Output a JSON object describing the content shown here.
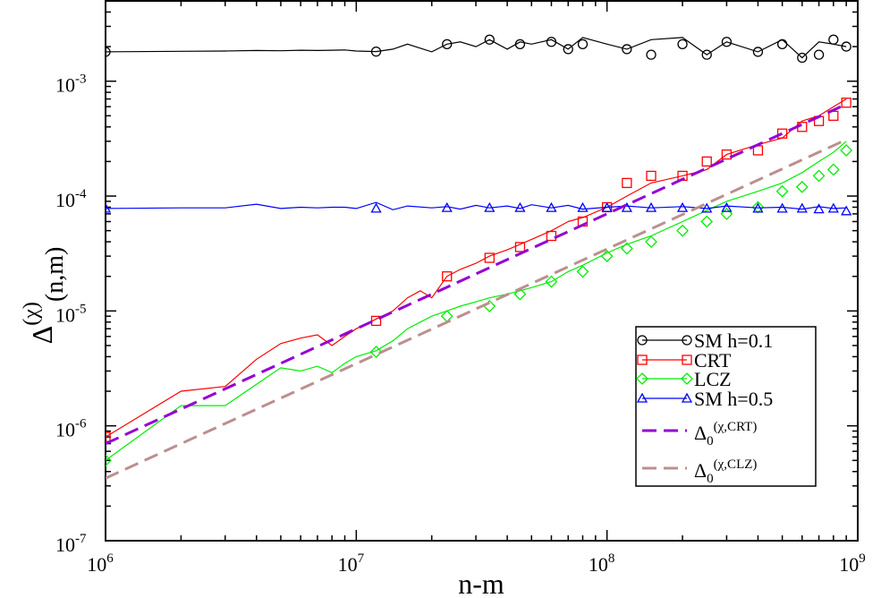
{
  "chart_data": {
    "type": "line",
    "xscale": "log",
    "yscale": "log",
    "xlim": [
      1000000,
      1000000000
    ],
    "ylim": [
      1e-07,
      0.005
    ],
    "xlabel": "n-m",
    "ylabel": {
      "main": "Δ",
      "sup": "(χ)",
      "sub": "(n,m)"
    },
    "x_ticks": [
      {
        "base": "10",
        "exp": "6",
        "value": 1000000
      },
      {
        "base": "10",
        "exp": "7",
        "value": 10000000
      },
      {
        "base": "10",
        "exp": "8",
        "value": 100000000
      },
      {
        "base": "10",
        "exp": "9",
        "value": 1000000000
      }
    ],
    "y_ticks": [
      {
        "base": "10",
        "exp": "-7",
        "value": 1e-07
      },
      {
        "base": "10",
        "exp": "-6",
        "value": 1e-06
      },
      {
        "base": "10",
        "exp": "-5",
        "value": 1e-05
      },
      {
        "base": "10",
        "exp": "-4",
        "value": 0.0001
      },
      {
        "base": "10",
        "exp": "-3",
        "value": 0.001
      }
    ],
    "legend_position": "bottom-right",
    "series": [
      {
        "name": "SM h=0.1",
        "legend_label": "SM h=0.1",
        "color": "#000000",
        "marker": "circle",
        "style": "solid",
        "x": [
          1000000.0,
          2000000.0,
          3000000.0,
          4000000.0,
          5000000.0,
          6000000.0,
          7000000.0,
          8000000.0,
          9000000.0,
          10000000.0,
          12000000.0,
          14000000.0,
          16000000.0,
          20000000.0,
          23000000.0,
          26000000.0,
          30000000.0,
          34000000.0,
          40000000.0,
          45000000.0,
          50000000.0,
          60000000.0,
          70000000.0,
          80000000.0,
          100000000.0,
          120000000.0,
          150000000.0,
          200000000.0,
          250000000.0,
          300000000.0,
          400000000.0,
          500000000.0,
          600000000.0,
          700000000.0,
          800000000.0,
          900000000.0
        ],
        "y": [
          0.0018,
          0.00182,
          0.00183,
          0.00185,
          0.00184,
          0.00186,
          0.00185,
          0.00186,
          0.00187,
          0.00183,
          0.00181,
          0.0019,
          0.0021,
          0.0018,
          0.0021,
          0.0022,
          0.002,
          0.0023,
          0.0019,
          0.0022,
          0.0021,
          0.0023,
          0.0019,
          0.0024,
          0.0021,
          0.0019,
          0.0023,
          0.0024,
          0.0017,
          0.0022,
          0.0018,
          0.0023,
          0.0016,
          0.0022,
          0.0021,
          0.002
        ],
        "marker_x": [
          1000000.0,
          12000000.0,
          23000000.0,
          34000000.0,
          45000000.0,
          60000000.0,
          70000000.0,
          80000000.0,
          120000000.0,
          150000000.0,
          200000000.0,
          250000000.0,
          300000000.0,
          400000000.0,
          500000000.0,
          600000000.0,
          700000000.0,
          800000000.0,
          900000000.0
        ],
        "marker_y": [
          0.0018,
          0.00181,
          0.0021,
          0.0023,
          0.0021,
          0.0022,
          0.0019,
          0.0021,
          0.0019,
          0.0017,
          0.0021,
          0.0017,
          0.0022,
          0.0018,
          0.0021,
          0.0016,
          0.0017,
          0.0023,
          0.002
        ]
      },
      {
        "name": "CRT",
        "legend_label": "CRT",
        "color": "#ff0000",
        "marker": "square",
        "style": "solid",
        "x": [
          1000000.0,
          2000000.0,
          3000000.0,
          4000000.0,
          5000000.0,
          6000000.0,
          7000000.0,
          8000000.0,
          9000000.0,
          10000000.0,
          12000000.0,
          14000000.0,
          16000000.0,
          18000000.0,
          20000000.0,
          23000000.0,
          26000000.0,
          30000000.0,
          34000000.0,
          40000000.0,
          45000000.0,
          50000000.0,
          60000000.0,
          70000000.0,
          80000000.0,
          100000000.0,
          120000000.0,
          150000000.0,
          200000000.0,
          250000000.0,
          300000000.0,
          400000000.0,
          500000000.0,
          600000000.0,
          700000000.0,
          800000000.0,
          900000000.0
        ],
        "y": [
          8e-07,
          2e-06,
          2.2e-06,
          3.8e-06,
          5.2e-06,
          5.8e-06,
          6.2e-06,
          5e-06,
          6e-06,
          7e-06,
          8.5e-06,
          1e-05,
          1.3e-05,
          1.5e-05,
          1.3e-05,
          2e-05,
          2.3e-05,
          2.6e-05,
          3e-05,
          3.4e-05,
          3.8e-05,
          4.2e-05,
          5e-05,
          6e-05,
          6.5e-05,
          8e-05,
          0.0001,
          0.00013,
          0.00015,
          0.00017,
          0.00023,
          0.00028,
          0.00032,
          0.00045,
          0.0005,
          0.0006,
          0.0007
        ],
        "marker_x": [
          1000000.0,
          12000000.0,
          23000000.0,
          34000000.0,
          45000000.0,
          60000000.0,
          80000000.0,
          100000000.0,
          120000000.0,
          150000000.0,
          200000000.0,
          250000000.0,
          300000000.0,
          400000000.0,
          500000000.0,
          600000000.0,
          700000000.0,
          800000000.0,
          900000000.0
        ],
        "marker_y": [
          8e-07,
          8.2e-06,
          2e-05,
          2.9e-05,
          3.6e-05,
          4.5e-05,
          6e-05,
          8e-05,
          0.00013,
          0.00015,
          0.00015,
          0.0002,
          0.00023,
          0.00025,
          0.00035,
          0.0004,
          0.00045,
          0.0005,
          0.00065
        ]
      },
      {
        "name": "LCZ",
        "legend_label": "LCZ",
        "color": "#00ee00",
        "marker": "diamond",
        "style": "solid",
        "x": [
          1000000.0,
          2000000.0,
          3000000.0,
          4000000.0,
          5000000.0,
          6000000.0,
          7000000.0,
          8000000.0,
          9000000.0,
          10000000.0,
          12000000.0,
          14000000.0,
          16000000.0,
          18000000.0,
          20000000.0,
          23000000.0,
          26000000.0,
          30000000.0,
          34000000.0,
          40000000.0,
          45000000.0,
          50000000.0,
          60000000.0,
          70000000.0,
          80000000.0,
          100000000.0,
          120000000.0,
          150000000.0,
          200000000.0,
          250000000.0,
          300000000.0,
          400000000.0,
          500000000.0,
          600000000.0,
          700000000.0,
          800000000.0,
          900000000.0
        ],
        "y": [
          5e-07,
          1.5e-06,
          1.5e-06,
          2.3e-06,
          3.2e-06,
          3e-06,
          3.3e-06,
          2.9e-06,
          3.5e-06,
          4e-06,
          4.5e-06,
          5.5e-06,
          7e-06,
          8e-06,
          9e-06,
          1e-05,
          1.1e-05,
          1.2e-05,
          1.3e-05,
          1.4e-05,
          1.5e-05,
          1.6e-05,
          1.8e-05,
          2.2e-05,
          2.5e-05,
          3.2e-05,
          3.8e-05,
          4.5e-05,
          6e-05,
          7.5e-05,
          9e-05,
          0.00011,
          0.00013,
          0.00016,
          0.0002,
          0.00024,
          0.0003
        ],
        "marker_x": [
          1000000.0,
          12000000.0,
          23000000.0,
          34000000.0,
          45000000.0,
          60000000.0,
          80000000.0,
          100000000.0,
          120000000.0,
          150000000.0,
          200000000.0,
          250000000.0,
          300000000.0,
          400000000.0,
          500000000.0,
          600000000.0,
          700000000.0,
          800000000.0,
          900000000.0
        ],
        "marker_y": [
          5e-07,
          4.4e-06,
          9e-06,
          1.1e-05,
          1.4e-05,
          1.8e-05,
          2.2e-05,
          3e-05,
          3.5e-05,
          4e-05,
          5e-05,
          6e-05,
          7e-05,
          8e-05,
          0.00011,
          0.00012,
          0.00015,
          0.00017,
          0.00025
        ]
      },
      {
        "name": "SM h=0.5",
        "legend_label": "SM h=0.5",
        "color": "#0000ff",
        "marker": "triangle",
        "style": "solid",
        "x": [
          1000000.0,
          2000000.0,
          3000000.0,
          4000000.0,
          5000000.0,
          6000000.0,
          7000000.0,
          8000000.0,
          9000000.0,
          10000000.0,
          12000000.0,
          14000000.0,
          16000000.0,
          20000000.0,
          23000000.0,
          26000000.0,
          30000000.0,
          34000000.0,
          40000000.0,
          45000000.0,
          50000000.0,
          60000000.0,
          70000000.0,
          80000000.0,
          100000000.0,
          120000000.0,
          150000000.0,
          200000000.0,
          250000000.0,
          300000000.0,
          400000000.0,
          500000000.0,
          600000000.0,
          700000000.0,
          800000000.0,
          900000000.0
        ],
        "y": [
          7.8e-05,
          7.9e-05,
          7.9e-05,
          8.5e-05,
          7.8e-05,
          8e-05,
          7.9e-05,
          8e-05,
          8e-05,
          7.8e-05,
          8.8e-05,
          7.6e-05,
          8.2e-05,
          7.9e-05,
          8.1e-05,
          7.7e-05,
          8.3e-05,
          7.9e-05,
          8.2e-05,
          7.8e-05,
          8.4e-05,
          7.9e-05,
          8.3e-05,
          7.7e-05,
          8e-05,
          8.2e-05,
          7.9e-05,
          8.1e-05,
          7.8e-05,
          8.2e-05,
          7.9e-05,
          8e-05,
          7.7e-05,
          8.1e-05,
          7.8e-05,
          7.9e-05
        ],
        "marker_x": [
          1000000.0,
          12000000.0,
          23000000.0,
          34000000.0,
          45000000.0,
          60000000.0,
          80000000.0,
          100000000.0,
          120000000.0,
          150000000.0,
          200000000.0,
          250000000.0,
          300000000.0,
          400000000.0,
          500000000.0,
          600000000.0,
          700000000.0,
          800000000.0,
          900000000.0
        ],
        "marker_y": [
          7.8e-05,
          7.8e-05,
          7.9e-05,
          7.9e-05,
          7.9e-05,
          7.9e-05,
          7.9e-05,
          7.9e-05,
          7.9e-05,
          7.9e-05,
          7.9e-05,
          7.8e-05,
          7.9e-05,
          7.8e-05,
          7.8e-05,
          7.8e-05,
          7.7e-05,
          7.8e-05,
          7.4e-05
        ]
      },
      {
        "name": "Δ0 (χ,CRT)",
        "legend_label": {
          "main": "Δ",
          "sub": "0",
          "sup": "(χ,CRT)"
        },
        "color": "#9400d3",
        "style": "dashed",
        "x": [
          1000000,
          900000000
        ],
        "y": [
          7e-07,
          0.00063
        ]
      },
      {
        "name": "Δ0 (χ,CLZ)",
        "legend_label": {
          "main": "Δ",
          "sub": "0",
          "sup": "(χ,CLZ)"
        },
        "color": "#bc8f8f",
        "style": "dashed",
        "x": [
          1000000,
          900000000
        ],
        "y": [
          3.5e-07,
          0.00031
        ]
      }
    ]
  }
}
